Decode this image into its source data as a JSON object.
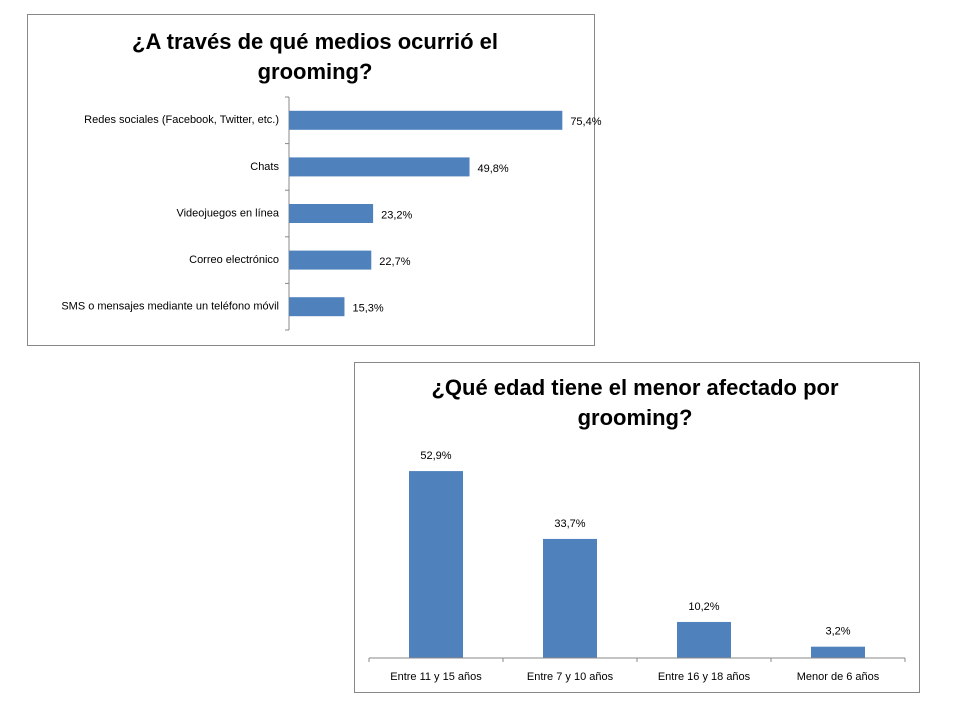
{
  "chart_data": [
    {
      "type": "bar",
      "horizontal": true,
      "title": "¿A través de qué medios ocurrió el grooming?",
      "categories": [
        "Redes sociales (Facebook, Twitter, etc.)",
        "Chats",
        "Videojuegos en línea",
        "Correo electrónico",
        "SMS o mensajes mediante un teléfono móvil"
      ],
      "values": [
        75.4,
        49.8,
        23.2,
        22.7,
        15.3
      ],
      "value_labels": [
        "75,4%",
        "49,8%",
        "23,2%",
        "22,7%",
        "15,3%"
      ],
      "color": "#4f81bd",
      "xlim": [
        0,
        80
      ]
    },
    {
      "type": "bar",
      "horizontal": false,
      "title": "¿Qué edad tiene el menor afectado por grooming?",
      "categories": [
        "Entre 11 y 15 años",
        "Entre 7 y 10 años",
        "Entre 16 y 18 años",
        "Menor de 6 años"
      ],
      "values": [
        52.9,
        33.7,
        10.2,
        3.2
      ],
      "value_labels": [
        "52,9%",
        "33,7%",
        "10,2%",
        "3,2%"
      ],
      "color": "#4f81bd",
      "ylim": [
        0,
        60
      ]
    }
  ]
}
